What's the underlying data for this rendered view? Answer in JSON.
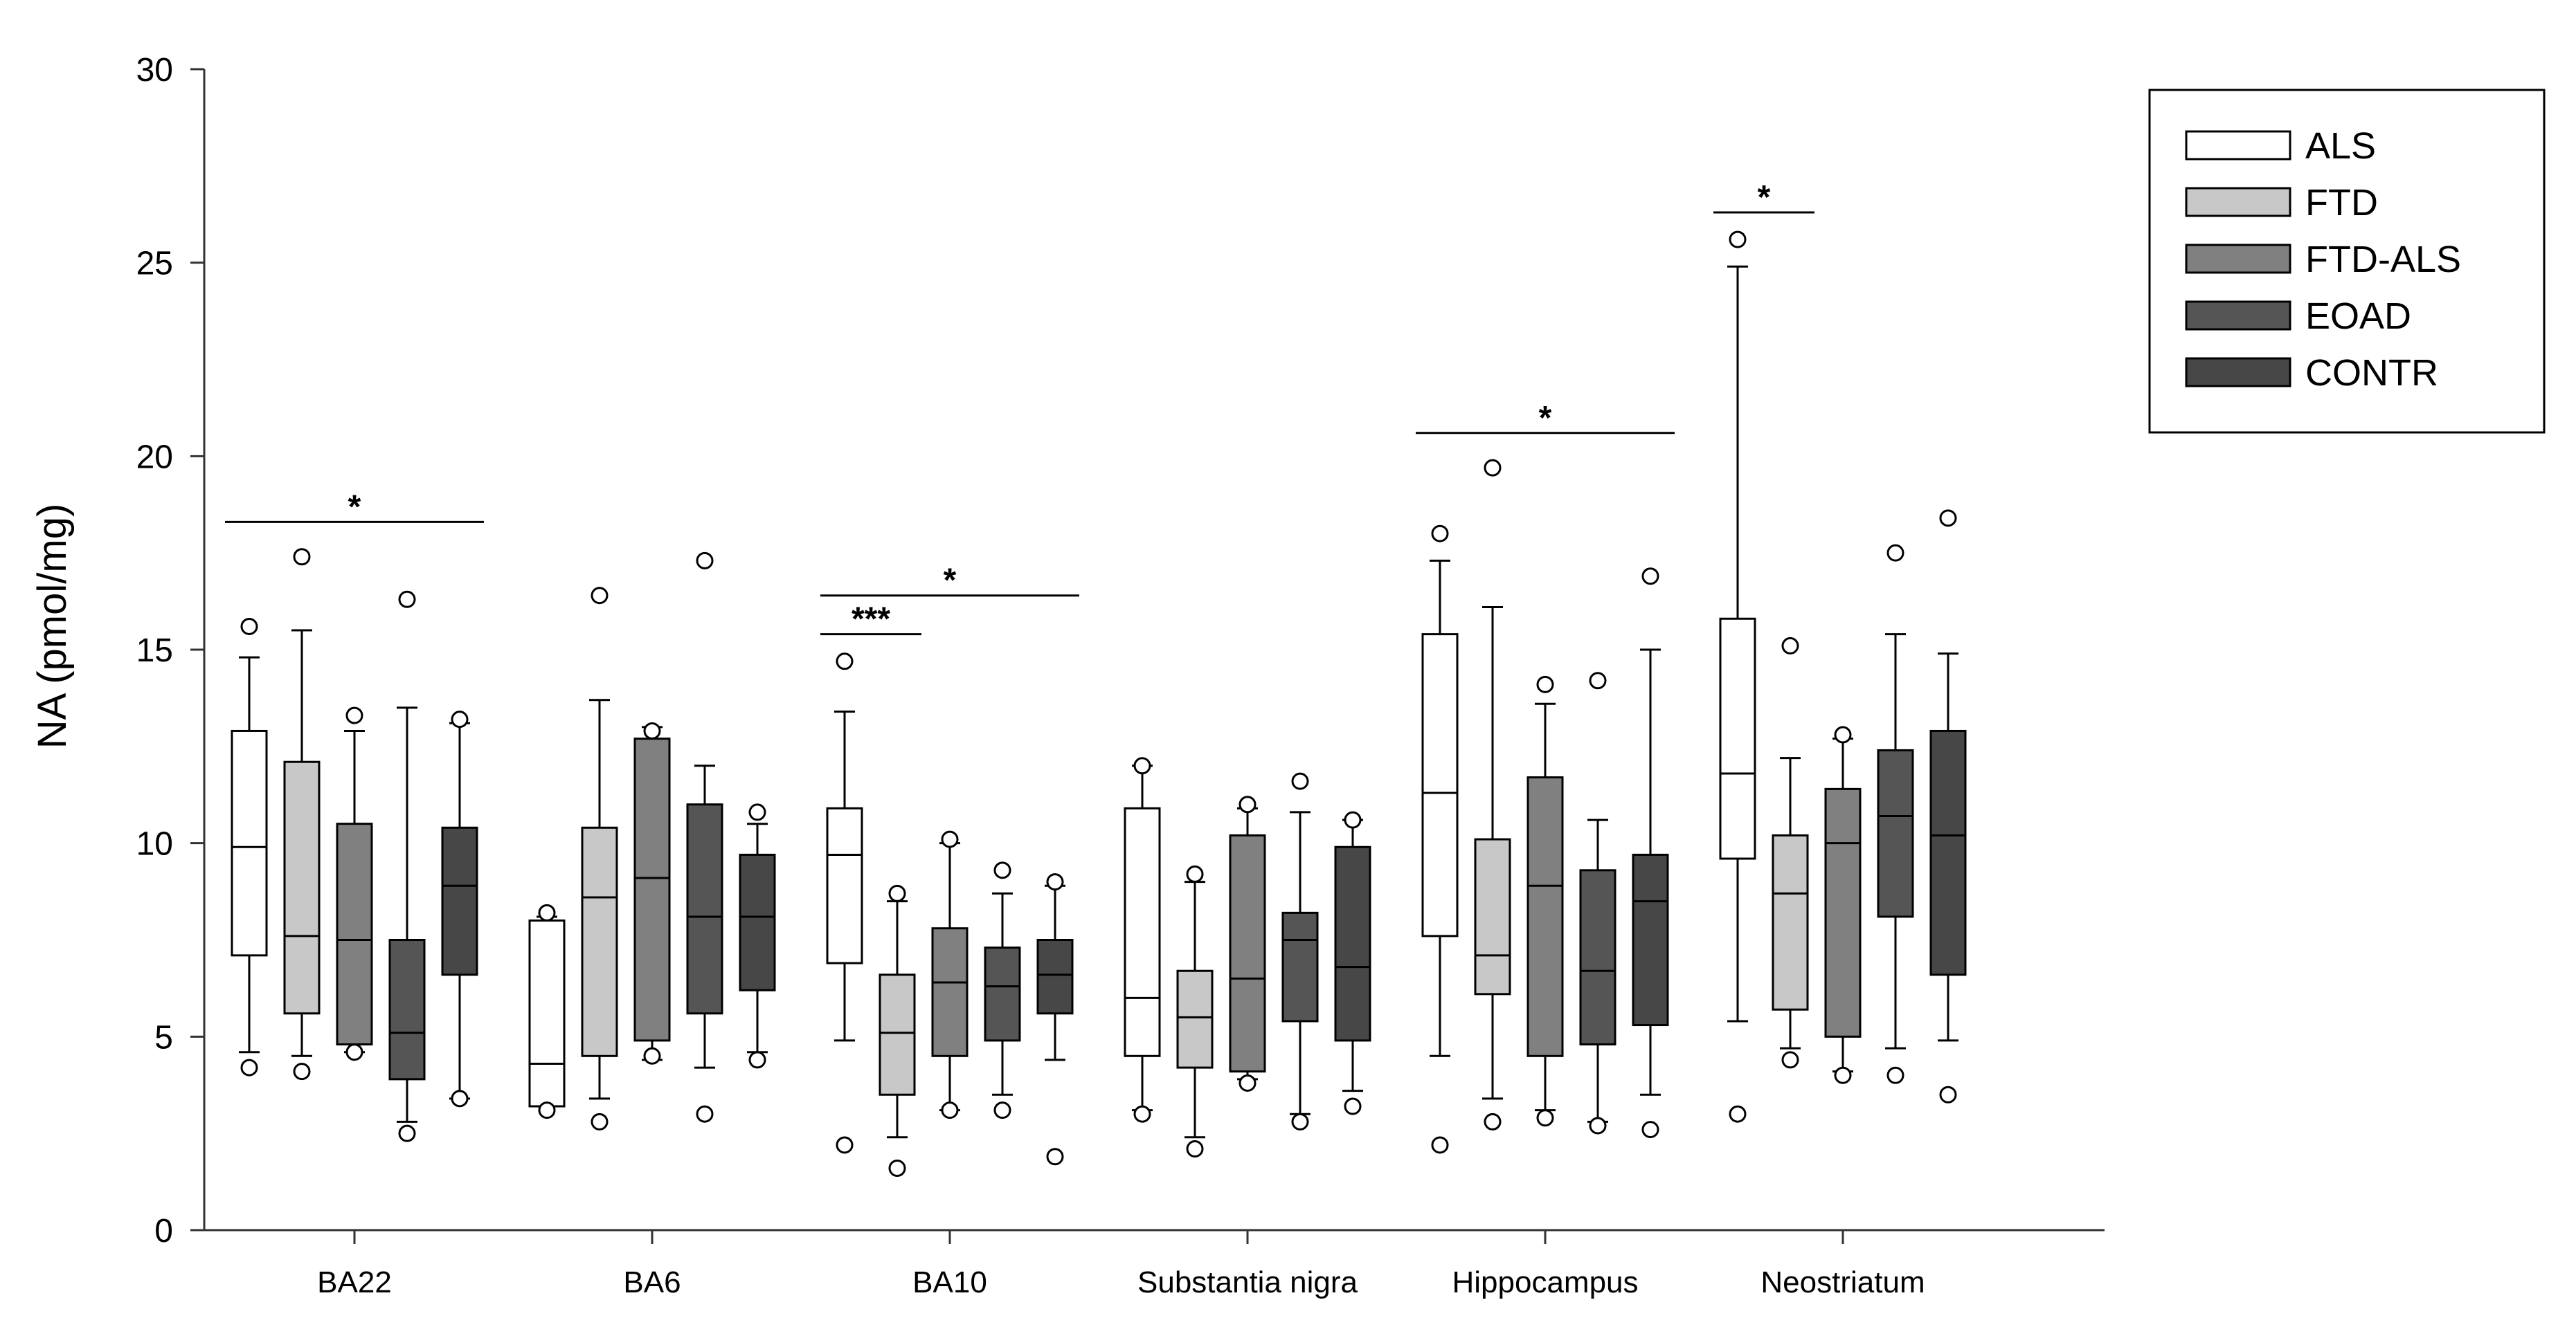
{
  "chart_data": {
    "type": "boxplot",
    "ylabel": "NA (pmol/mg)",
    "xlabel": "",
    "ylim": [
      0,
      30
    ],
    "yticks": [
      0,
      5,
      10,
      15,
      20,
      25,
      30
    ],
    "ytick_labels": [
      "0",
      "5",
      "10",
      "15",
      "20",
      "25",
      "30"
    ],
    "categories": [
      "BA22",
      "BA6",
      "BA10",
      "Substantia nigra",
      "Hippocampus",
      "Neostriatum"
    ],
    "legend_position": "top-right",
    "series": [
      {
        "name": "ALS",
        "color": "#ffffff"
      },
      {
        "name": "FTD",
        "color": "#c8c8c8"
      },
      {
        "name": "FTD-ALS",
        "color": "#808080"
      },
      {
        "name": "EOAD",
        "color": "#555555"
      },
      {
        "name": "CONTR",
        "color": "#474747"
      }
    ],
    "boxes": [
      [
        {
          "whisker_low": 4.6,
          "q1": 7.1,
          "median": 9.9,
          "q3": 12.9,
          "whisker_high": 14.8,
          "outliers": [
            15.6,
            4.2
          ]
        },
        {
          "whisker_low": 4.5,
          "q1": 5.6,
          "median": 7.6,
          "q3": 12.1,
          "whisker_high": 15.5,
          "outliers": [
            17.4,
            4.1
          ]
        },
        {
          "whisker_low": 4.6,
          "q1": 4.8,
          "median": 7.5,
          "q3": 10.5,
          "whisker_high": 12.9,
          "outliers": [
            13.3,
            4.6
          ]
        },
        {
          "whisker_low": 2.8,
          "q1": 3.9,
          "median": 5.1,
          "q3": 7.5,
          "whisker_high": 13.5,
          "outliers": [
            16.3,
            2.5
          ]
        },
        {
          "whisker_low": 3.4,
          "q1": 6.6,
          "median": 8.9,
          "q3": 10.4,
          "whisker_high": 13.1,
          "outliers": [
            13.2,
            3.4
          ]
        }
      ],
      [
        {
          "whisker_low": 3.2,
          "q1": 3.2,
          "median": 4.3,
          "q3": 8.0,
          "whisker_high": 8.1,
          "outliers": [
            8.2,
            3.1
          ]
        },
        {
          "whisker_low": 3.4,
          "q1": 4.5,
          "median": 8.6,
          "q3": 10.4,
          "whisker_high": 13.7,
          "outliers": [
            16.4,
            2.8
          ]
        },
        {
          "whisker_low": 4.4,
          "q1": 4.9,
          "median": 9.1,
          "q3": 12.7,
          "whisker_high": 13.0,
          "outliers": [
            12.9,
            4.5
          ]
        },
        {
          "whisker_low": 4.2,
          "q1": 5.6,
          "median": 8.1,
          "q3": 11.0,
          "whisker_high": 12.0,
          "outliers": [
            17.3,
            3.0
          ]
        },
        {
          "whisker_low": 4.6,
          "q1": 6.2,
          "median": 8.1,
          "q3": 9.7,
          "whisker_high": 10.5,
          "outliers": [
            10.8,
            4.4
          ]
        }
      ],
      [
        {
          "whisker_low": 4.9,
          "q1": 6.9,
          "median": 9.7,
          "q3": 10.9,
          "whisker_high": 13.4,
          "outliers": [
            14.7,
            2.2
          ]
        },
        {
          "whisker_low": 2.4,
          "q1": 3.5,
          "median": 5.1,
          "q3": 6.6,
          "whisker_high": 8.5,
          "outliers": [
            8.7,
            1.6
          ]
        },
        {
          "whisker_low": 3.1,
          "q1": 4.5,
          "median": 6.4,
          "q3": 7.8,
          "whisker_high": 10.0,
          "outliers": [
            10.1,
            3.1
          ]
        },
        {
          "whisker_low": 3.5,
          "q1": 4.9,
          "median": 6.3,
          "q3": 7.3,
          "whisker_high": 8.7,
          "outliers": [
            9.3,
            3.1
          ]
        },
        {
          "whisker_low": 4.4,
          "q1": 5.6,
          "median": 6.6,
          "q3": 7.5,
          "whisker_high": 8.9,
          "outliers": [
            9.0,
            1.9
          ]
        }
      ],
      [
        {
          "whisker_low": 3.1,
          "q1": 4.5,
          "median": 6.0,
          "q3": 10.9,
          "whisker_high": 12.0,
          "outliers": [
            12.0,
            3.0
          ]
        },
        {
          "whisker_low": 2.4,
          "q1": 4.2,
          "median": 5.5,
          "q3": 6.7,
          "whisker_high": 9.0,
          "outliers": [
            9.2,
            2.1
          ]
        },
        {
          "whisker_low": 3.9,
          "q1": 4.1,
          "median": 6.5,
          "q3": 10.2,
          "whisker_high": 10.9,
          "outliers": [
            11.0,
            3.8
          ]
        },
        {
          "whisker_low": 3.0,
          "q1": 5.4,
          "median": 7.5,
          "q3": 8.2,
          "whisker_high": 10.8,
          "outliers": [
            11.6,
            2.8
          ]
        },
        {
          "whisker_low": 3.6,
          "q1": 4.9,
          "median": 6.8,
          "q3": 9.9,
          "whisker_high": 10.6,
          "outliers": [
            10.6,
            3.2
          ]
        }
      ],
      [
        {
          "whisker_low": 4.5,
          "q1": 7.6,
          "median": 11.3,
          "q3": 15.4,
          "whisker_high": 17.3,
          "outliers": [
            18.0,
            2.2
          ]
        },
        {
          "whisker_low": 3.4,
          "q1": 6.1,
          "median": 7.1,
          "q3": 10.1,
          "whisker_high": 16.1,
          "outliers": [
            19.7,
            2.8
          ]
        },
        {
          "whisker_low": 3.1,
          "q1": 4.5,
          "median": 8.9,
          "q3": 11.7,
          "whisker_high": 13.6,
          "outliers": [
            14.1,
            2.9
          ]
        },
        {
          "whisker_low": 2.8,
          "q1": 4.8,
          "median": 6.7,
          "q3": 9.3,
          "whisker_high": 10.6,
          "outliers": [
            14.2,
            2.7
          ]
        },
        {
          "whisker_low": 3.5,
          "q1": 5.3,
          "median": 8.5,
          "q3": 9.7,
          "whisker_high": 15.0,
          "outliers": [
            16.9,
            2.6
          ]
        }
      ],
      [
        {
          "whisker_low": 5.4,
          "q1": 9.6,
          "median": 11.8,
          "q3": 15.8,
          "whisker_high": 24.9,
          "outliers": [
            25.6,
            3.0
          ]
        },
        {
          "whisker_low": 4.7,
          "q1": 5.7,
          "median": 8.7,
          "q3": 10.2,
          "whisker_high": 12.2,
          "outliers": [
            15.1,
            4.4
          ]
        },
        {
          "whisker_low": 4.1,
          "q1": 5.0,
          "median": 10.0,
          "q3": 11.4,
          "whisker_high": 12.7,
          "outliers": [
            12.8,
            4.0
          ]
        },
        {
          "whisker_low": 4.7,
          "q1": 8.1,
          "median": 10.7,
          "q3": 12.4,
          "whisker_high": 15.4,
          "outliers": [
            17.5,
            4.0
          ]
        },
        {
          "whisker_low": 4.9,
          "q1": 6.6,
          "median": 10.2,
          "q3": 12.9,
          "whisker_high": 14.9,
          "outliers": [
            18.4,
            3.5
          ]
        }
      ]
    ],
    "significance": [
      {
        "category": 0,
        "from_series": 0,
        "to_series": 4,
        "y": 18.3,
        "label": "*"
      },
      {
        "category": 2,
        "from_series": 0,
        "to_series": 1,
        "y": 15.4,
        "label": "***"
      },
      {
        "category": 2,
        "from_series": 0,
        "to_series": 4,
        "y": 16.4,
        "label": "*"
      },
      {
        "category": 4,
        "from_series": 0,
        "to_series": 4,
        "y": 20.6,
        "label": "*"
      },
      {
        "category": 5,
        "from_series": 0,
        "to_series": 1,
        "y": 26.3,
        "label": "*"
      }
    ]
  }
}
